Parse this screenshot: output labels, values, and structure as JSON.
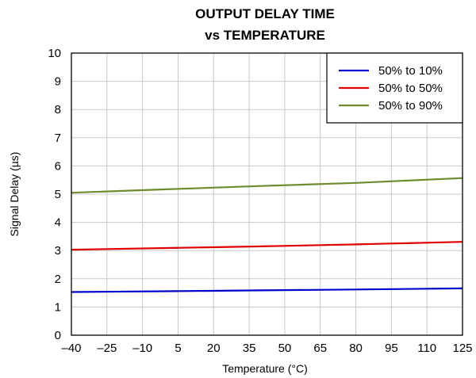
{
  "chart_data": {
    "type": "line",
    "title": "OUTPUT DELAY TIME",
    "subtitle": "vs TEMPERATURE",
    "xlabel": "Temperature (°C)",
    "ylabel": "Signal Delay (µs)",
    "xlim": [
      -40,
      125
    ],
    "ylim": [
      0,
      10
    ],
    "x_ticks": [
      "–40",
      "–25",
      "–10",
      "5",
      "20",
      "35",
      "50",
      "65",
      "80",
      "95",
      "110",
      "125"
    ],
    "y_ticks": [
      "0",
      "1",
      "2",
      "3",
      "4",
      "5",
      "6",
      "7",
      "8",
      "9",
      "10"
    ],
    "grid": true,
    "legend_position": "top-right",
    "series": [
      {
        "name": "50% to 10%",
        "color": "#0000cc",
        "x": [
          -40,
          0,
          40,
          80,
          125
        ],
        "y": [
          1.53,
          1.56,
          1.59,
          1.62,
          1.66
        ]
      },
      {
        "name": "50% to 50%",
        "color": "#e00000",
        "x": [
          -40,
          0,
          40,
          80,
          125
        ],
        "y": [
          3.03,
          3.09,
          3.15,
          3.22,
          3.31
        ]
      },
      {
        "name": "50% to 90%",
        "color": "#6e8b2e",
        "x": [
          -40,
          0,
          40,
          80,
          125
        ],
        "y": [
          5.05,
          5.17,
          5.29,
          5.4,
          5.57
        ]
      }
    ]
  }
}
